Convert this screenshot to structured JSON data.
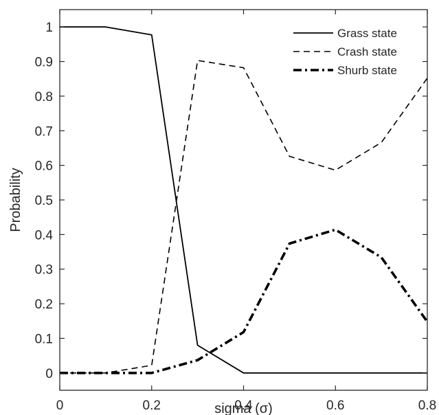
{
  "chart_data": {
    "type": "line",
    "title": "",
    "xlabel": "sigma (σ)",
    "ylabel": "Probability",
    "xlim": [
      0,
      0.8
    ],
    "ylim": [
      -0.05,
      1.05
    ],
    "grid": false,
    "legend_position": "top-right",
    "x": [
      0,
      0.1,
      0.2,
      0.3,
      0.4,
      0.5,
      0.6,
      0.7,
      0.8
    ],
    "x_ticks": [
      0,
      0.2,
      0.4,
      0.6,
      0.8
    ],
    "x_tick_labels": [
      "0",
      "0.2",
      "0.4",
      "0.6",
      "0.8"
    ],
    "y_ticks": [
      0,
      0.1,
      0.2,
      0.3,
      0.4,
      0.5,
      0.6,
      0.7,
      0.8,
      0.9,
      1
    ],
    "y_tick_labels": [
      "0",
      "0.1",
      "0.2",
      "0.3",
      "0.4",
      "0.5",
      "0.6",
      "0.7",
      "0.8",
      "0.9",
      "1"
    ],
    "series": [
      {
        "name": "Grass state",
        "style": "solid",
        "color": "#000000",
        "values": [
          1.0,
          1.0,
          0.977,
          0.08,
          0.0,
          0.0,
          0.0,
          0.0,
          0.0
        ]
      },
      {
        "name": "Crash state",
        "style": "dashed",
        "color": "#000000",
        "values": [
          0.0,
          0.0,
          0.022,
          0.903,
          0.882,
          0.626,
          0.586,
          0.666,
          0.852
        ]
      },
      {
        "name": "Shurb state",
        "style": "dash-dot",
        "color": "#000000",
        "values": [
          0.0,
          0.0,
          0.0,
          0.037,
          0.118,
          0.374,
          0.414,
          0.334,
          0.148
        ]
      }
    ]
  }
}
